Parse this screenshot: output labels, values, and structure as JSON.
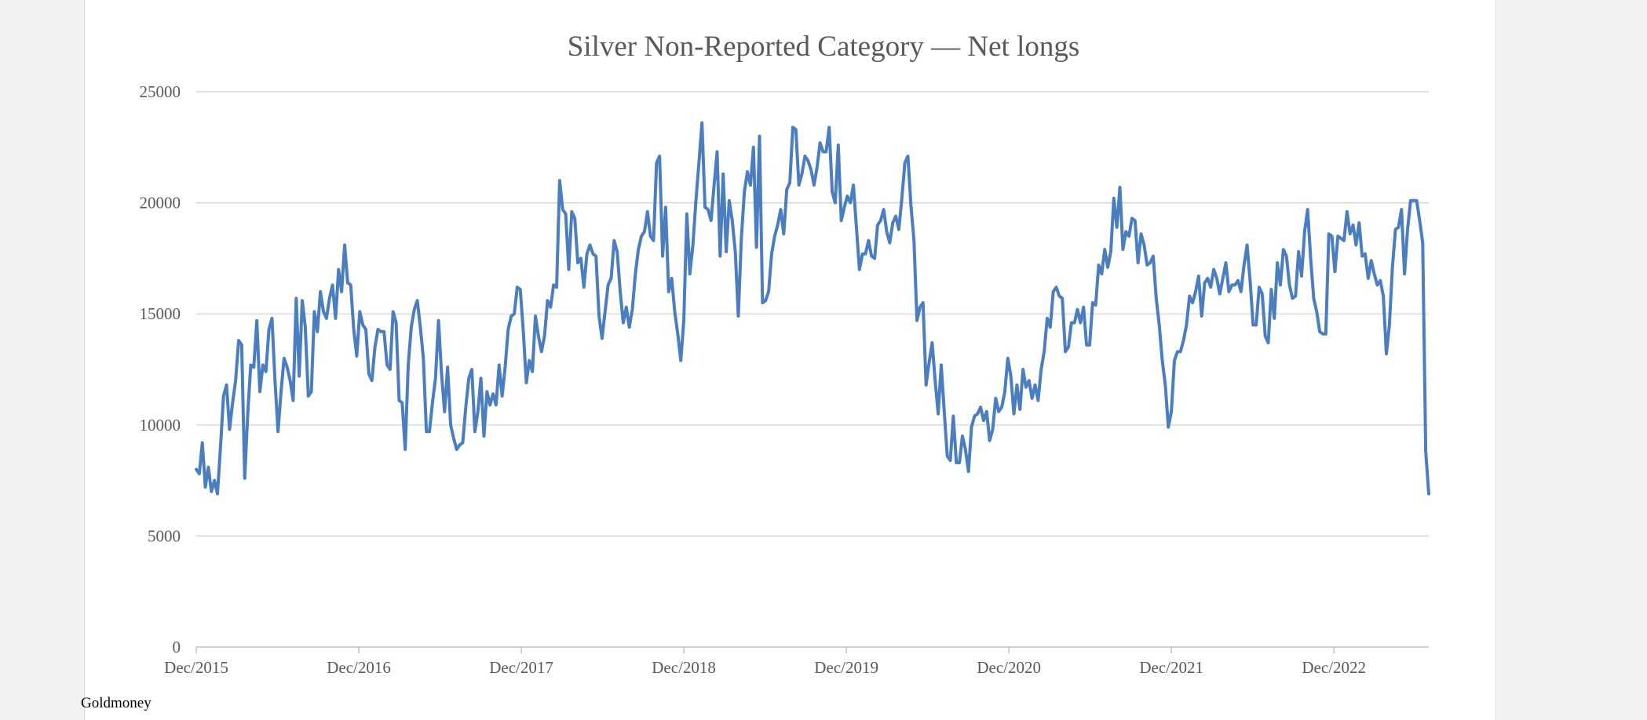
{
  "colors": {
    "background": "#f2f2f2",
    "page": "#ffffff",
    "line": "#4a7ebf",
    "grid": "#d0d0d0",
    "text": "#595959"
  },
  "source": "Goldmoney",
  "chart_data": {
    "type": "line",
    "title": "Silver Non-Reported Category — Net longs",
    "xlabel": "",
    "ylabel": "",
    "ylim": [
      0,
      25000
    ],
    "yticks": [
      "0",
      "5000",
      "10000",
      "15000",
      "20000",
      "25000"
    ],
    "xticks": [
      "Dec/2015",
      "Dec/2016",
      "Dec/2017",
      "Dec/2018",
      "Dec/2019",
      "Dec/2020",
      "Dec/2021",
      "Dec/2022"
    ],
    "x_start": "Dec/2015",
    "x_end": "Jul/2023",
    "grid": true,
    "legend": "none",
    "series": [
      {
        "values": [
          8000,
          7800,
          9200,
          7200,
          8100,
          7000,
          7500,
          6900,
          9000,
          11300,
          11800,
          9800,
          11000,
          12000,
          13800,
          13600,
          7600,
          10500,
          12700,
          12600,
          14700,
          11500,
          12700,
          12400,
          14300,
          14800,
          12000,
          9700,
          11500,
          13000,
          12600,
          12000,
          11100,
          15700,
          12200,
          15600,
          14400,
          11300,
          11500,
          15100,
          14200,
          16000,
          15100,
          14800,
          15700,
          16300,
          14800,
          17000,
          16000,
          18100,
          16400,
          16300,
          14300,
          13100,
          15100,
          14500,
          14300,
          12300,
          12000,
          13500,
          14300,
          14200,
          14200,
          12700,
          12500,
          15100,
          14600,
          11100,
          11000,
          8900,
          12700,
          14400,
          15200,
          15600,
          14400,
          13000,
          9700,
          9700,
          11000,
          12100,
          14700,
          12300,
          10600,
          12600,
          10000,
          9400,
          8900,
          9100,
          9200,
          10800,
          12100,
          12500,
          9700,
          10600,
          12100,
          9500,
          11500,
          10900,
          11400,
          10900,
          12700,
          11300,
          12600,
          14300,
          14900,
          15000,
          16200,
          16100,
          14200,
          11900,
          12900,
          12400,
          14900,
          14000,
          13300,
          14000,
          15600,
          15300,
          16300,
          16200,
          21000,
          19700,
          19500,
          17000,
          19600,
          19300,
          17300,
          17500,
          16200,
          17700,
          18100,
          17700,
          17600,
          14900,
          13900,
          15100,
          16300,
          16600,
          18300,
          17800,
          16000,
          14600,
          15300,
          14400,
          15200,
          16800,
          17900,
          18500,
          18700,
          19600,
          18500,
          18300,
          21800,
          22100,
          17600,
          19800,
          16000,
          16600,
          15100,
          14100,
          12900,
          14700,
          19500,
          16800,
          18100,
          20100,
          21800,
          23600,
          19800,
          19700,
          19200,
          20800,
          22300,
          17600,
          21300,
          17800,
          20100,
          19200,
          17800,
          14900,
          18400,
          20500,
          21400,
          20800,
          22500,
          18000,
          23000,
          15500,
          15600,
          16000,
          17700,
          18500,
          19000,
          19700,
          18600,
          20600,
          20900,
          23400,
          23300,
          20800,
          21300,
          22100,
          21900,
          21500,
          20800,
          21600,
          22700,
          22300,
          22300,
          23400,
          20500,
          20000,
          22600,
          19200,
          19800,
          20300,
          20000,
          20800,
          18900,
          17000,
          17700,
          17700,
          18300,
          17600,
          17500,
          19000,
          19200,
          19700,
          18700,
          18200,
          19100,
          19400,
          18800,
          20200,
          21800,
          22100,
          19900,
          18300,
          14700,
          15300,
          15500,
          11800,
          12800,
          13700,
          12000,
          10500,
          12700,
          10600,
          8600,
          8400,
          10400,
          8300,
          8300,
          9500,
          8900,
          7900,
          9900,
          10400,
          10500,
          10800,
          10200,
          10600,
          9300,
          9800,
          11200,
          10600,
          10800,
          11500,
          13000,
          12200,
          10500,
          11800,
          10700,
          12500,
          11700,
          12000,
          11200,
          11800,
          11100,
          12500,
          13300,
          14800,
          14400,
          16000,
          16200,
          15800,
          15700,
          13300,
          13500,
          14600,
          14600,
          15200,
          14600,
          15300,
          13600,
          13600,
          15500,
          15400,
          17200,
          16800,
          17900,
          17100,
          17800,
          20200,
          18900,
          20700,
          17900,
          18700,
          18500,
          19300,
          19200,
          17300,
          18600,
          18100,
          17200,
          17300,
          17600,
          15700,
          14500,
          12900,
          11800,
          9900,
          10600,
          12900,
          13300,
          13300,
          13800,
          14500,
          15800,
          15500,
          16000,
          16700,
          14900,
          16400,
          16600,
          16200,
          17000,
          16600,
          15900,
          16600,
          17300,
          16000,
          16300,
          16300,
          16500,
          16000,
          17200,
          18100,
          16500,
          14500,
          14500,
          16200,
          15900,
          14000,
          13700,
          16100,
          14800,
          17300,
          16300,
          17900,
          17600,
          16300,
          15700,
          15800,
          17800,
          16700,
          18700,
          19700,
          17500,
          15700,
          15100,
          14200,
          14100,
          14100,
          18600,
          18500,
          16900,
          18500,
          18400,
          18300,
          19600,
          18600,
          19000,
          18100,
          19100,
          17600,
          17700,
          16600,
          17400,
          16800,
          16300,
          16500,
          15800,
          13200,
          14500,
          17100,
          18800,
          18900,
          19700,
          16800,
          18800,
          20100,
          20100,
          20100,
          19200,
          18200,
          8800,
          6900
        ]
      }
    ]
  }
}
